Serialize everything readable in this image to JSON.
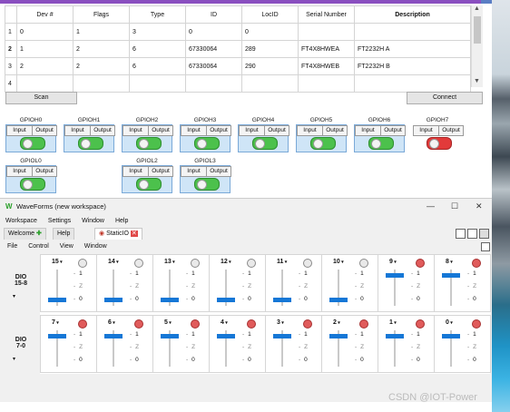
{
  "device_table": {
    "columns": [
      "Dev #",
      "Flags",
      "Type",
      "ID",
      "LocID",
      "Serial Number",
      "Description"
    ],
    "rows": [
      {
        "rownum": "1",
        "cells": [
          "0",
          "1",
          "3",
          "0",
          "0",
          "",
          ""
        ]
      },
      {
        "rownum": "2",
        "cells": [
          "1",
          "2",
          "6",
          "67330064",
          "289",
          "FT4X8HWEA",
          "FT2232H  A"
        ]
      },
      {
        "rownum": "3",
        "cells": [
          "2",
          "2",
          "6",
          "67330064",
          "290",
          "FT4X8HWEB",
          "FT2232H  B"
        ]
      },
      {
        "rownum": "4",
        "cells": [
          "",
          "",
          "",
          "",
          "",
          "",
          ""
        ]
      }
    ],
    "scroll_up": "▲",
    "scroll_down": "▼"
  },
  "buttons": {
    "scan": "Scan",
    "connect": "Connect"
  },
  "gpio": {
    "input_label": "Input",
    "output_label": "Output",
    "pins": [
      {
        "name": "GPIOH0",
        "state": "green"
      },
      {
        "name": "GPIOH1",
        "state": "green"
      },
      {
        "name": "GPIOH2",
        "state": "green"
      },
      {
        "name": "GPIOH3",
        "state": "green"
      },
      {
        "name": "GPIOH4",
        "state": "green"
      },
      {
        "name": "GPIOH5",
        "state": "green"
      },
      {
        "name": "GPIOH6",
        "state": "green"
      },
      {
        "name": "GPIOH7",
        "state": "red"
      },
      {
        "name": "GPIOL0",
        "state": "green"
      },
      {
        "name": "GPIOL2",
        "state": "green"
      },
      {
        "name": "GPIOL3",
        "state": "green"
      }
    ]
  },
  "waveforms": {
    "title": "WaveForms (new workspace)",
    "controls": {
      "minimize": "—",
      "maximize": "☐",
      "close": "✕"
    },
    "menu": [
      "Workspace",
      "Settings",
      "Window",
      "Help"
    ],
    "tabs": [
      {
        "label": "Welcome",
        "icon": "plus-icon"
      },
      {
        "label": "Help",
        "icon": ""
      },
      {
        "label": "StaticIO",
        "icon": "close-icon"
      }
    ],
    "submenu": [
      "File",
      "Control",
      "View",
      "Window"
    ],
    "row_labels": [
      "DIO\n15-8",
      "DIO\n7-0"
    ],
    "level_labels": {
      "one": "1",
      "z": "Z",
      "zero": "0"
    },
    "dio_row1": [
      {
        "name": "15",
        "led": false,
        "level": "0"
      },
      {
        "name": "14",
        "led": false,
        "level": "0"
      },
      {
        "name": "13",
        "led": false,
        "level": "0"
      },
      {
        "name": "12",
        "led": false,
        "level": "0"
      },
      {
        "name": "11",
        "led": false,
        "level": "0"
      },
      {
        "name": "10",
        "led": false,
        "level": "0"
      },
      {
        "name": "9",
        "led": true,
        "level": "1"
      },
      {
        "name": "8",
        "led": true,
        "level": "1"
      }
    ],
    "dio_row2": [
      {
        "name": "7",
        "led": true,
        "level": "1"
      },
      {
        "name": "6",
        "led": true,
        "level": "1"
      },
      {
        "name": "5",
        "led": true,
        "level": "1"
      },
      {
        "name": "4",
        "led": true,
        "level": "1"
      },
      {
        "name": "3",
        "led": true,
        "level": "1"
      },
      {
        "name": "2",
        "led": true,
        "level": "1"
      },
      {
        "name": "1",
        "led": true,
        "level": "1"
      },
      {
        "name": "0",
        "led": true,
        "level": "1"
      }
    ]
  },
  "watermark": "CSDN @IOT-Power",
  "colors": {
    "accent": "#1577d6",
    "toggle_on": "#4cc14c",
    "toggle_red": "#e23a3a",
    "led_on": "#e05b5b"
  }
}
